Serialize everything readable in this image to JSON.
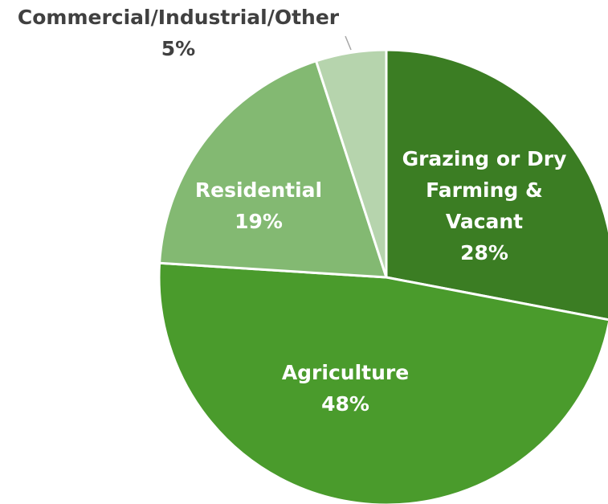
{
  "chart_data": {
    "type": "pie",
    "categories": [
      "Grazing or Dry Farming & Vacant",
      "Agriculture",
      "Residential",
      "Commercial/Industrial/Other"
    ],
    "values": [
      28,
      48,
      19,
      5
    ],
    "value_labels": [
      "28%",
      "48%",
      "19%",
      "5%"
    ],
    "colors": [
      "#3b7d23",
      "#4a9b2c",
      "#83b972",
      "#b6d4ad"
    ]
  }
}
